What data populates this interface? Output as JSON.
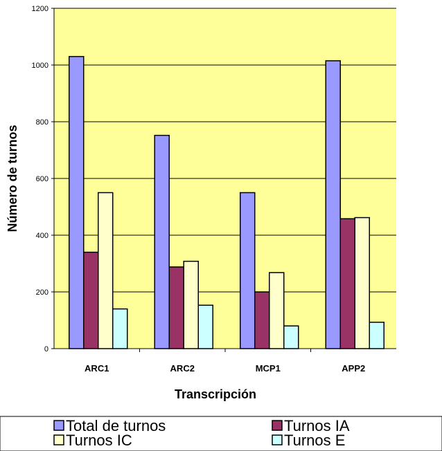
{
  "chart_data": {
    "type": "bar",
    "title": "",
    "xlabel": "Transcripción",
    "ylabel": "Número de turnos",
    "ylim": [
      0,
      1200
    ],
    "yticks": [
      0,
      200,
      400,
      600,
      800,
      1000,
      1200
    ],
    "categories": [
      "ARC1",
      "ARC2",
      "MCP1",
      "APP2"
    ],
    "series": [
      {
        "name": "Total de turnos",
        "values": [
          1030,
          752,
          550,
          1015
        ],
        "color": "#9999ff"
      },
      {
        "name": "Turnos IA",
        "values": [
          340,
          288,
          200,
          458
        ],
        "color": "#993366"
      },
      {
        "name": "Turnos IC",
        "values": [
          550,
          308,
          268,
          462
        ],
        "color": "#ffffcc"
      },
      {
        "name": "Turnos E",
        "values": [
          140,
          153,
          80,
          93
        ],
        "color": "#ccffff"
      }
    ],
    "grid": true,
    "plot_background": "#ffff99",
    "legend_position": "bottom"
  }
}
